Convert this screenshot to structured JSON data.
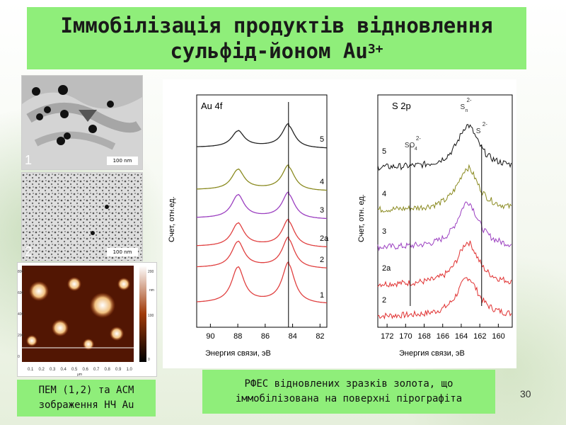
{
  "slide": {
    "title_line1": "Іммобілізація продуктів відновлення",
    "title_line2": "сульфід-йоном Au",
    "title_sup": "3+",
    "page_number": "30"
  },
  "images": {
    "tem1_label": "1",
    "tem1_scale": "100 nm",
    "tem2_label": "2",
    "tem2_scale": "100 nm",
    "afm_x_ticks": [
      "0.1",
      "0.2",
      "0.3",
      "0.4",
      "0.5",
      "0.6",
      "0.7",
      "0.8",
      "0.9",
      "1.0"
    ],
    "afm_x_unit": "µm",
    "afm_y_ticks": [
      "0",
      "200",
      "400",
      "600",
      "800"
    ],
    "afm_colorbar_ticks": [
      "0",
      "100",
      "200"
    ],
    "afm_colorbar_unit": "nm"
  },
  "captions": {
    "left_line1": "ПЕМ (1,2) та АСМ",
    "left_line2": "зображення НЧ Au",
    "right_line1": "РФЕС відновлених зразків золота, що",
    "right_line2": "іммобілізована на поверхні пірографіта"
  },
  "chart_data": [
    {
      "type": "line",
      "title": "Au 4f",
      "xlabel": "Энергия связи, эВ",
      "ylabel": "Счет, отн.ед.",
      "x_ticks": [
        "90",
        "88",
        "86",
        "84",
        "82"
      ],
      "xlim": [
        91,
        81.5
      ],
      "x_reversed": true,
      "peaks": [
        88.0,
        84.3
      ],
      "reference_line": 84.3,
      "series": [
        {
          "name": "1",
          "color": "#e04040",
          "peak_heights": [
            0.62,
            0.7
          ]
        },
        {
          "name": "2",
          "color": "#e04040",
          "peak_heights": [
            0.45,
            0.52
          ]
        },
        {
          "name": "2a",
          "color": "#e04040",
          "peak_heights": [
            0.4,
            0.46
          ]
        },
        {
          "name": "3",
          "color": "#9b3fc0",
          "peak_heights": [
            0.4,
            0.44
          ]
        },
        {
          "name": "4",
          "color": "#8a8a20",
          "peak_heights": [
            0.35,
            0.42
          ]
        },
        {
          "name": "5",
          "color": "#222222",
          "peak_heights": [
            0.28,
            0.4
          ]
        }
      ]
    },
    {
      "type": "line",
      "title": "S 2p",
      "xlabel": "Энергия связи, эВ",
      "ylabel": "Счет, отн. ед.",
      "x_ticks": [
        "172",
        "170",
        "168",
        "166",
        "164",
        "162",
        "160"
      ],
      "xlim": [
        173,
        158.5
      ],
      "x_reversed": true,
      "annotations": [
        {
          "text": "SO",
          "sub": "4",
          "sup": "2-",
          "x": 169.5
        },
        {
          "text": "S",
          "sub": "n",
          "sup": "2-",
          "x": 163.5
        },
        {
          "text": "S",
          "sub": "",
          "sup": "2-",
          "x": 161.8
        }
      ],
      "reference_lines": [
        169.5,
        161.8
      ],
      "series": [
        {
          "name": "2",
          "color": "#e03030"
        },
        {
          "name": "2a",
          "color": "#e03030"
        },
        {
          "name": "3",
          "color": "#9b3fc0"
        },
        {
          "name": "4",
          "color": "#8a8a20"
        },
        {
          "name": "5",
          "color": "#111111"
        }
      ]
    }
  ]
}
